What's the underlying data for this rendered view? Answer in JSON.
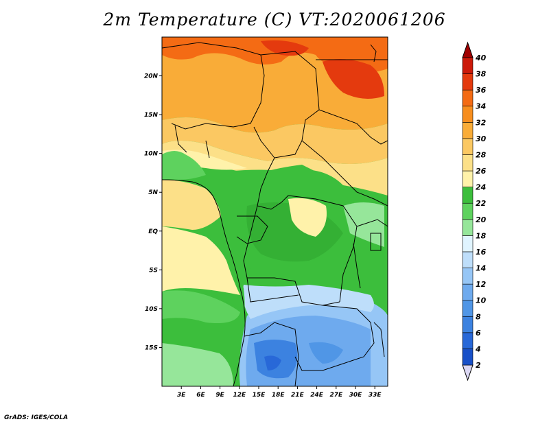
{
  "title": "2m Temperature (C) VT:2020061206",
  "footer": "GrADS: IGES/COLA",
  "map": {
    "lat_labels": [
      {
        "label": "20N",
        "lat": 20
      },
      {
        "label": "15N",
        "lat": 15
      },
      {
        "label": "10N",
        "lat": 10
      },
      {
        "label": "5N",
        "lat": 5
      },
      {
        "label": "EQ",
        "lat": 0
      },
      {
        "label": "5S",
        "lat": -5
      },
      {
        "label": "10S",
        "lat": -10
      },
      {
        "label": "15S",
        "lat": -15
      }
    ],
    "lon_labels": [
      {
        "label": "3E",
        "lon": 3
      },
      {
        "label": "6E",
        "lon": 6
      },
      {
        "label": "9E",
        "lon": 9
      },
      {
        "label": "12E",
        "lon": 12
      },
      {
        "label": "15E",
        "lon": 15
      },
      {
        "label": "18E",
        "lon": 18
      },
      {
        "label": "21E",
        "lon": 21
      },
      {
        "label": "24E",
        "lon": 24
      },
      {
        "label": "27E",
        "lon": 27
      },
      {
        "label": "30E",
        "lon": 30
      },
      {
        "label": "33E",
        "lon": 33
      }
    ],
    "lon_range": [
      0,
      35
    ],
    "lat_range": [
      -20,
      25
    ]
  },
  "colorbar": {
    "levels": [
      "2",
      "4",
      "6",
      "8",
      "10",
      "12",
      "14",
      "16",
      "18",
      "20",
      "22",
      "24",
      "26",
      "28",
      "30",
      "32",
      "34",
      "36",
      "38",
      "40"
    ],
    "colors": [
      "#1a1880",
      "#1850c8",
      "#2868d8",
      "#3c82e0",
      "#5096e6",
      "#6eaaee",
      "#96c6f6",
      "#bedeFa",
      "#e0f4ff",
      "#96e69a",
      "#5ed25e",
      "#3cbe3c",
      "#fff2aa",
      "#fce088",
      "#fbc862",
      "#f9ac38",
      "#f78e1e",
      "#f46b14",
      "#e43a0e",
      "#cc1a0a",
      "#a00000"
    ],
    "low_color": "#dcd8f4",
    "high_color": "#a00000"
  }
}
